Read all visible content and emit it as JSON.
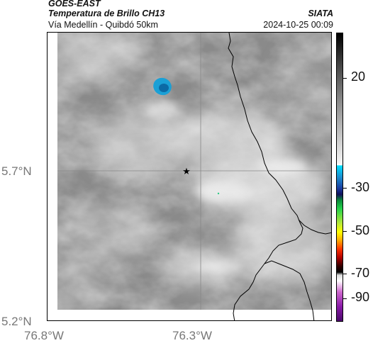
{
  "header": {
    "satellite": "GOES-EAST",
    "product": "Temperatura de Brillo CH13",
    "subtitle": "Vía Medellín - Quibdó 50km",
    "organization": "SIATA",
    "timestamp": "2024-10-25 00:09"
  },
  "axes": {
    "latitudes": [
      "5.7°N",
      "5.2°N"
    ],
    "longitudes": [
      "76.8°W",
      "76.3°W"
    ]
  },
  "colorbar": {
    "ticks": [
      "20",
      "-30",
      "-50",
      "-70",
      "-90"
    ]
  },
  "marker": {
    "icon": "star-icon"
  },
  "colors": {
    "cold_cloud": "#1aa0d6",
    "cold_core": "#0b6aa5",
    "border_line": "#000000"
  }
}
